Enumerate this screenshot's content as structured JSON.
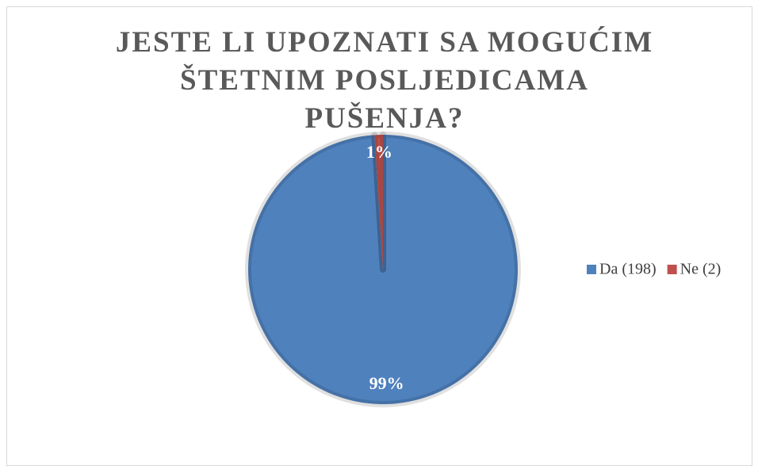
{
  "chart_data": {
    "type": "pie",
    "title": "JESTE LI UPOZNATI SA MOGUĆIM ŠTETNIM POSLJEDICAMA PUŠENJA?",
    "categories": [
      "Da (198)",
      "Ne (2)"
    ],
    "values": [
      99,
      1
    ],
    "value_labels": [
      "99%",
      "1%"
    ],
    "colors": [
      "#4f81bd",
      "#c0504d"
    ],
    "legend": "right"
  }
}
